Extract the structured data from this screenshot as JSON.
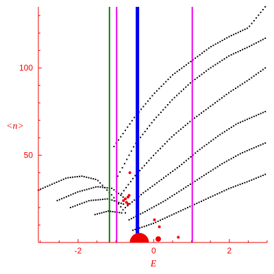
{
  "chart_data": {
    "type": "scatter",
    "title": "",
    "xlabel": "E",
    "ylabel": "<n>",
    "xlim": [
      -3.05,
      3.0
    ],
    "ylim": [
      0,
      135
    ],
    "xticks": [
      -2,
      0,
      2
    ],
    "yticks": [
      50,
      100
    ],
    "grid": false,
    "legend": "none",
    "colors": {
      "axis": "#ee0000",
      "points": "#000000",
      "red_points": "#ee0000",
      "vline_green": "#008000",
      "vline_magenta": "#ee00ee",
      "vline_blue": "#0000ee"
    },
    "vlines": [
      {
        "x": -1.17,
        "color": "#008000",
        "width": 2
      },
      {
        "x": -0.98,
        "color": "#ee00ee",
        "width": 2
      },
      {
        "x": -0.43,
        "color": "#0000ee",
        "width": 5
      },
      {
        "x": 1.02,
        "color": "#ee00ee",
        "width": 2
      }
    ],
    "curves": [
      {
        "xmin": -3.05,
        "xmax": -0.75,
        "points": [
          [
            -3.05,
            30
          ],
          [
            -2.3,
            37
          ],
          [
            -1.9,
            38
          ],
          [
            -1.5,
            36
          ],
          [
            -1.1,
            27
          ],
          [
            -0.75,
            17
          ]
        ]
      },
      {
        "xmin": -2.55,
        "xmax": -0.75,
        "points": [
          [
            -2.55,
            24
          ],
          [
            -2.0,
            29
          ],
          [
            -1.5,
            32
          ],
          [
            -1.1,
            31
          ],
          [
            -0.75,
            25
          ]
        ]
      },
      {
        "xmin": -2.2,
        "xmax": -0.8,
        "points": [
          [
            -2.2,
            20
          ],
          [
            -1.7,
            24
          ],
          [
            -1.2,
            25
          ],
          [
            -0.8,
            22
          ]
        ]
      },
      {
        "xmin": -1.55,
        "xmax": -0.85,
        "points": [
          [
            -1.55,
            16
          ],
          [
            -1.2,
            18
          ],
          [
            -0.85,
            17
          ]
        ]
      },
      {
        "xmin": -1.05,
        "xmax": 2.95,
        "points": [
          [
            -1.05,
            55
          ],
          [
            -0.5,
            72
          ],
          [
            0.0,
            85
          ],
          [
            0.5,
            96
          ],
          [
            1.0,
            104
          ],
          [
            1.5,
            112
          ],
          [
            2.0,
            118
          ],
          [
            2.5,
            123
          ],
          [
            2.95,
            135
          ]
        ]
      },
      {
        "xmin": -0.95,
        "xmax": 2.95,
        "points": [
          [
            -0.95,
            38
          ],
          [
            -0.5,
            56
          ],
          [
            0.0,
            70
          ],
          [
            0.5,
            82
          ],
          [
            1.0,
            92
          ],
          [
            1.5,
            100
          ],
          [
            2.0,
            107
          ],
          [
            2.5,
            112
          ],
          [
            2.95,
            117
          ]
        ]
      },
      {
        "xmin": -0.85,
        "xmax": 2.95,
        "points": [
          [
            -0.85,
            28
          ],
          [
            -0.5,
            38
          ],
          [
            0.0,
            50
          ],
          [
            0.5,
            61
          ],
          [
            1.0,
            70
          ],
          [
            1.5,
            78
          ],
          [
            2.0,
            86
          ],
          [
            2.5,
            93
          ],
          [
            2.95,
            100
          ]
        ]
      },
      {
        "xmin": -0.75,
        "xmax": 2.95,
        "points": [
          [
            -0.75,
            20
          ],
          [
            -0.3,
            28
          ],
          [
            0.2,
            36
          ],
          [
            0.7,
            44
          ],
          [
            1.2,
            53
          ],
          [
            1.7,
            61
          ],
          [
            2.2,
            68
          ],
          [
            2.95,
            75
          ]
        ]
      },
      {
        "xmin": -0.65,
        "xmax": 2.95,
        "points": [
          [
            -0.65,
            13
          ],
          [
            -0.2,
            18
          ],
          [
            0.3,
            24
          ],
          [
            0.8,
            31
          ],
          [
            1.3,
            38
          ],
          [
            1.8,
            45
          ],
          [
            2.3,
            51
          ],
          [
            2.95,
            57
          ]
        ]
      },
      {
        "xmin": -0.55,
        "xmax": 2.95,
        "points": [
          [
            -0.55,
            7
          ],
          [
            0.0,
            11
          ],
          [
            0.5,
            16
          ],
          [
            1.0,
            21
          ],
          [
            1.5,
            26
          ],
          [
            2.0,
            31
          ],
          [
            2.5,
            35
          ],
          [
            2.95,
            39
          ]
        ]
      }
    ],
    "red_points": [
      {
        "x": -0.63,
        "y": 40,
        "size": 1
      },
      {
        "x": -0.75,
        "y": 25,
        "size": 1
      },
      {
        "x": -0.65,
        "y": 27,
        "size": 1
      },
      {
        "x": -0.68,
        "y": 26,
        "size": 1
      },
      {
        "x": -0.8,
        "y": 24,
        "size": 1
      },
      {
        "x": -0.72,
        "y": 23,
        "size": 1
      },
      {
        "x": -0.68,
        "y": 22,
        "size": 1
      },
      {
        "x": 0.02,
        "y": 13,
        "size": 1
      },
      {
        "x": 0.15,
        "y": 9,
        "size": 1
      },
      {
        "x": 0.65,
        "y": 3,
        "size": 1
      },
      {
        "x": 0.12,
        "y": 2,
        "size": 2
      },
      {
        "x": -0.38,
        "y": 3,
        "size": 4
      }
    ]
  }
}
